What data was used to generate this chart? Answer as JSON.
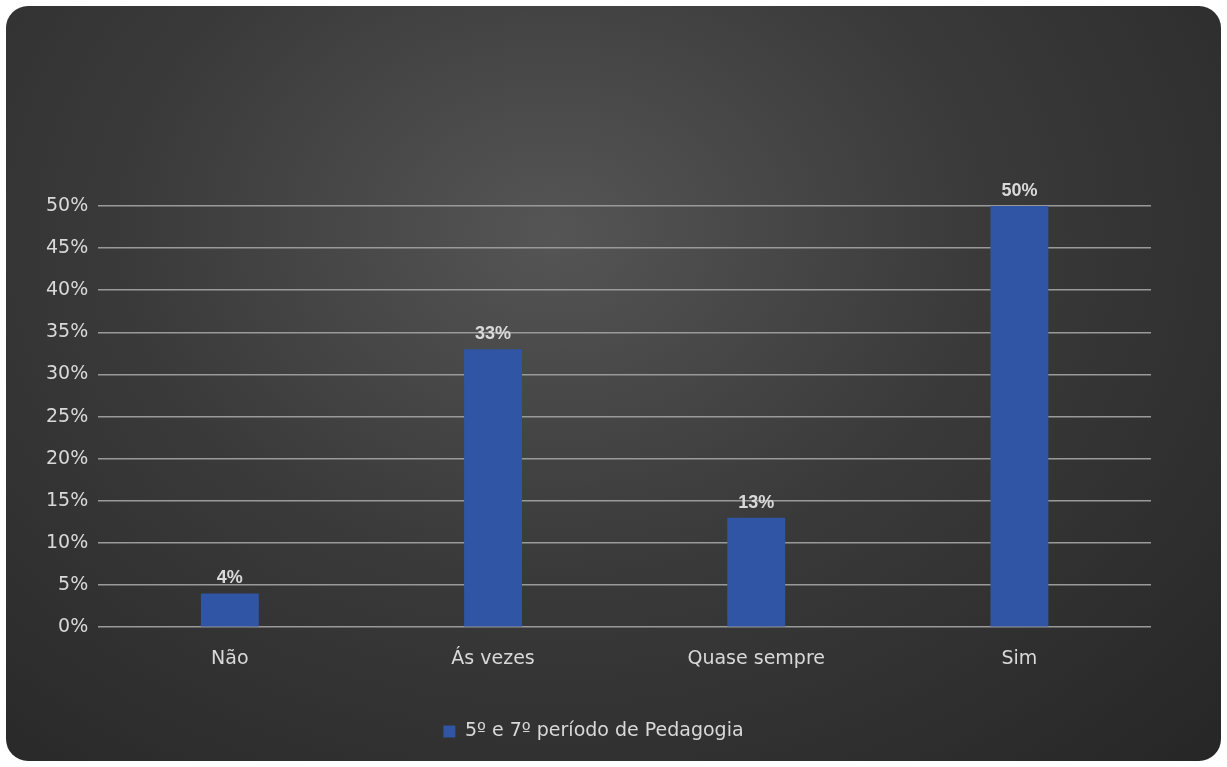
{
  "chart_data": {
    "type": "bar",
    "categories": [
      "Não",
      "Ás vezes",
      "Quase sempre",
      "Sim"
    ],
    "series": [
      {
        "name": "5º e 7º período de Pedagogia",
        "color": "#2f55a4",
        "values": [
          4,
          33,
          13,
          50
        ],
        "value_labels": [
          "4%",
          "33%",
          "13%",
          "50%"
        ]
      }
    ],
    "ylim": [
      0,
      50
    ],
    "yticks": [
      {
        "value": 0,
        "label": "0%"
      },
      {
        "value": 5,
        "label": "5%"
      },
      {
        "value": 10,
        "label": "10%"
      },
      {
        "value": 15,
        "label": "15%"
      },
      {
        "value": 20,
        "label": "20%"
      },
      {
        "value": 25,
        "label": "25%"
      },
      {
        "value": 30,
        "label": "30%"
      },
      {
        "value": 35,
        "label": "35%"
      },
      {
        "value": 40,
        "label": "40%"
      },
      {
        "value": 45,
        "label": "45%"
      },
      {
        "value": 50,
        "label": "50%"
      }
    ],
    "grid": "y",
    "legend": "bottom"
  }
}
